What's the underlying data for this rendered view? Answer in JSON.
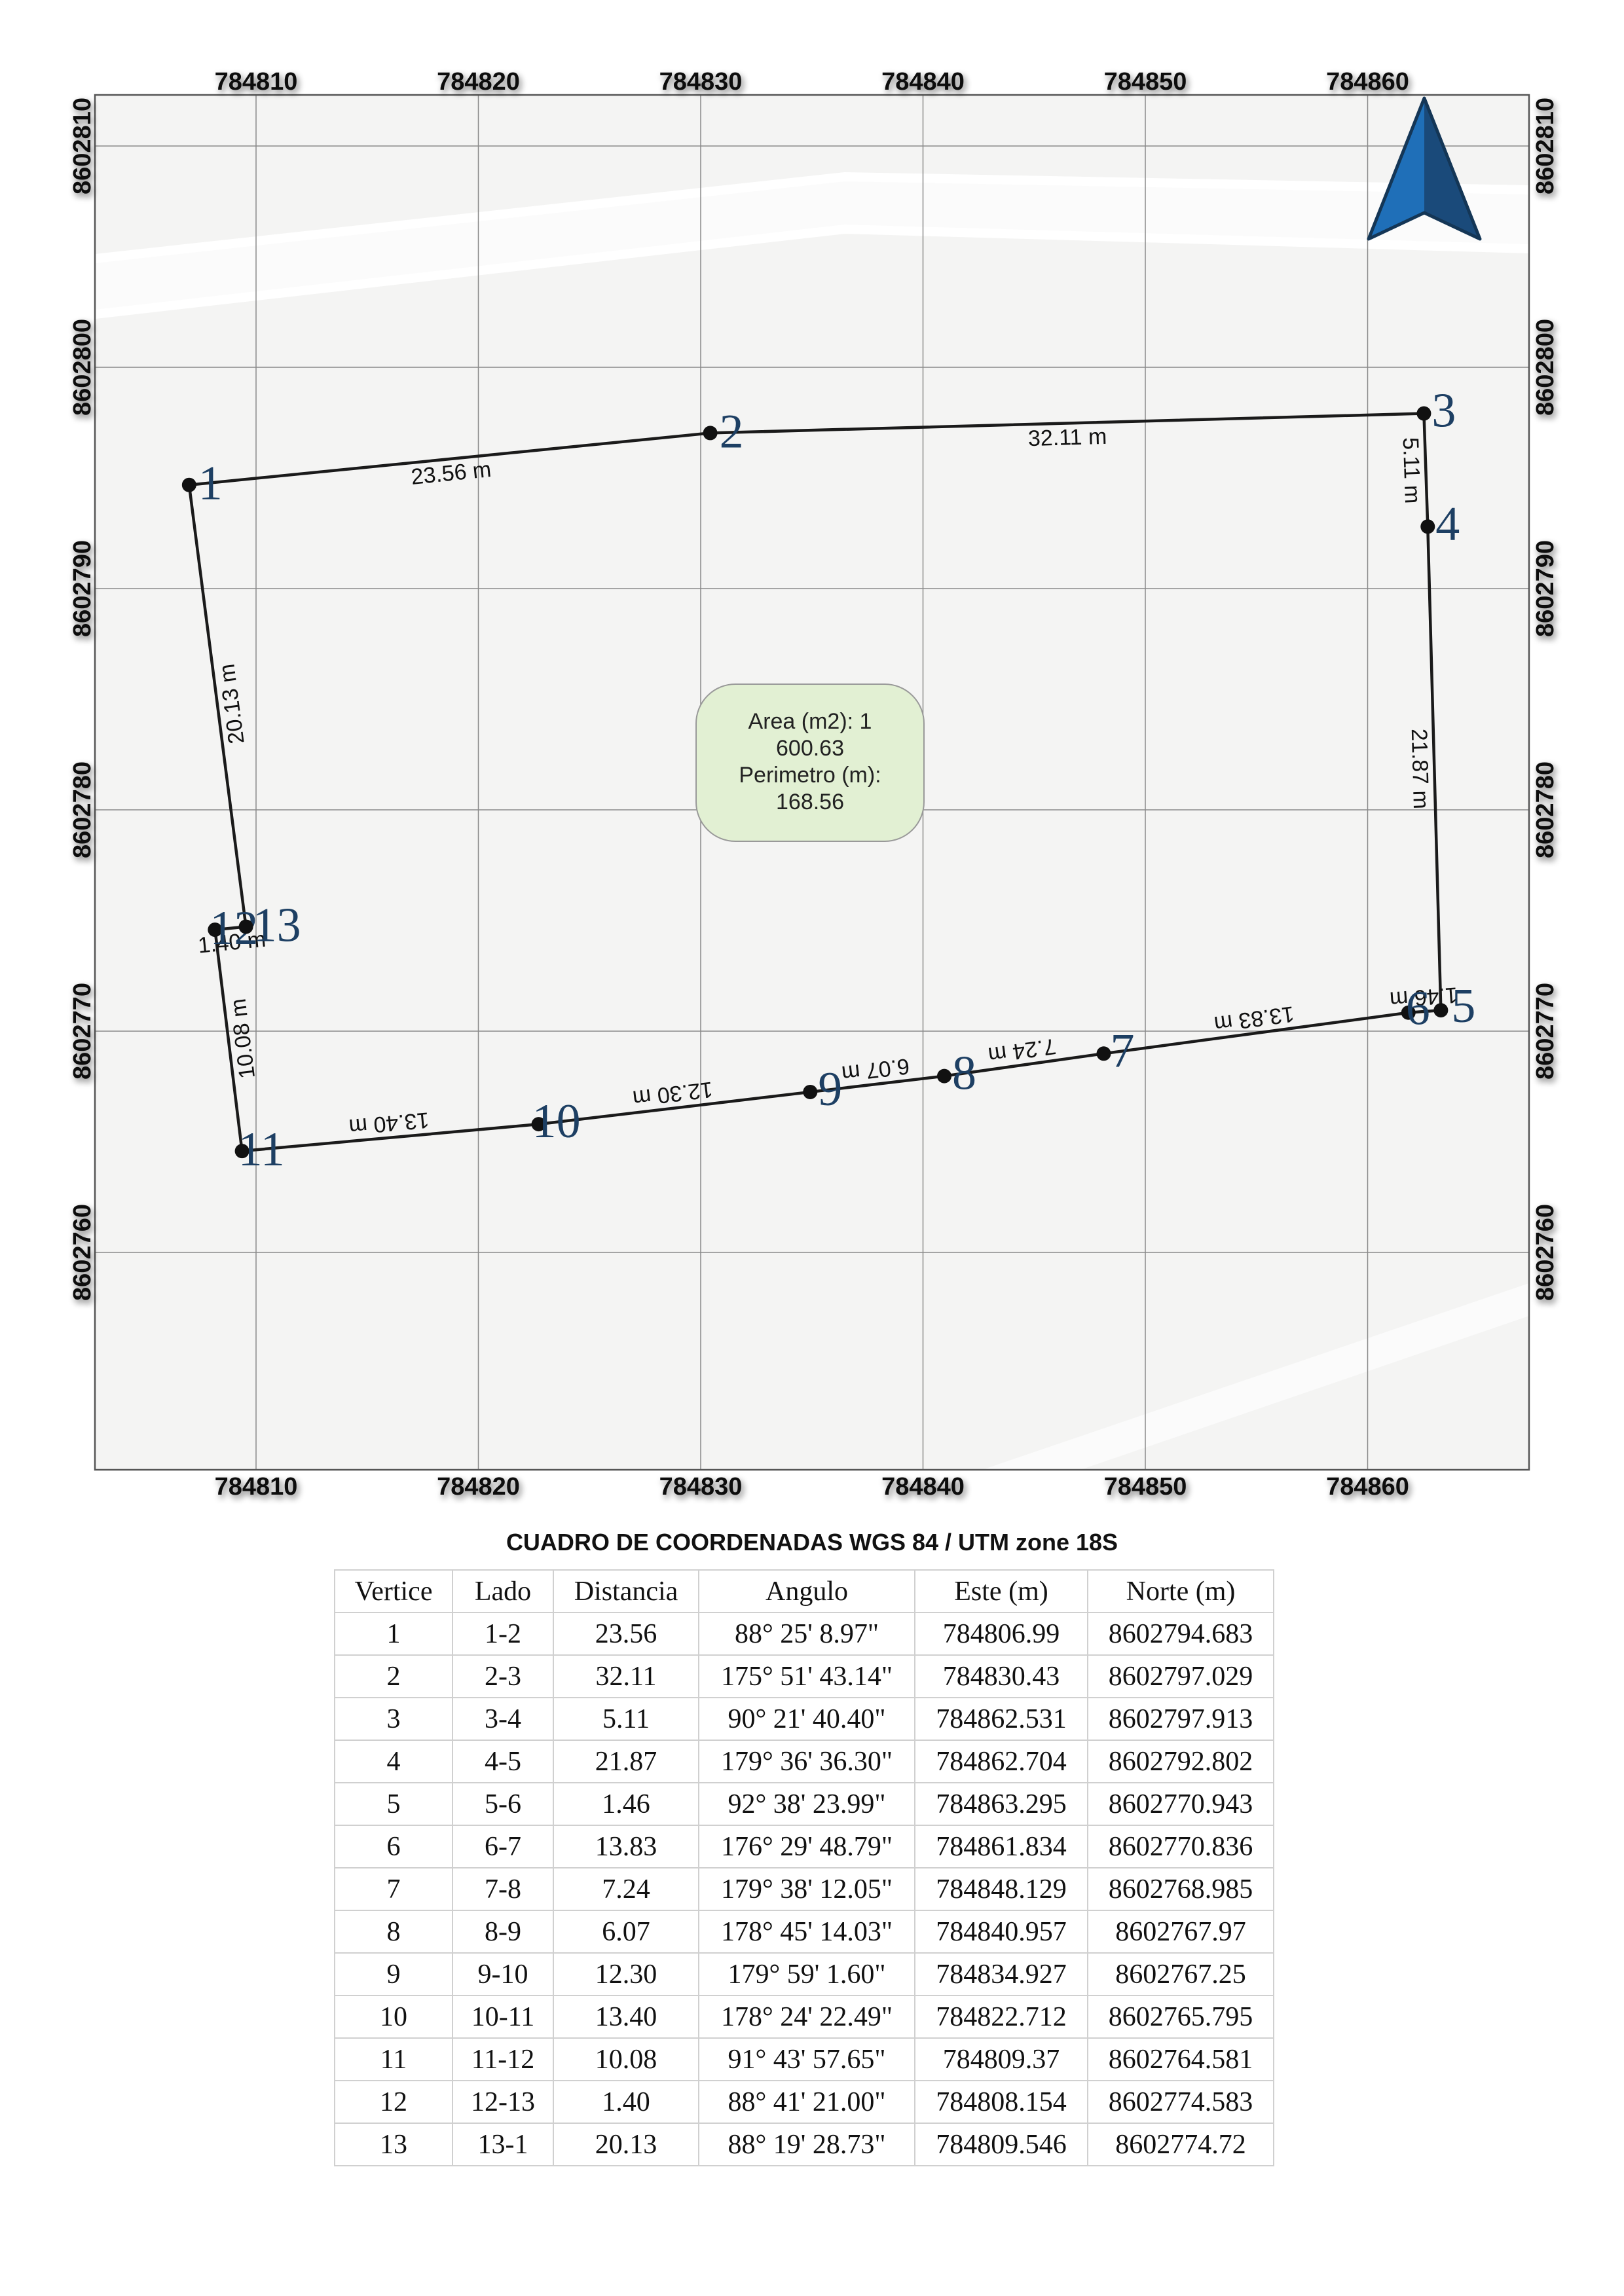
{
  "map": {
    "x_ticks": [
      "784810",
      "784820",
      "784830",
      "784840",
      "784850",
      "784860"
    ],
    "y_ticks": [
      "8602810",
      "8602800",
      "8602790",
      "8602780",
      "8602770",
      "8602760"
    ],
    "north_arrow_icon": "north-arrow-icon",
    "vertices": [
      {
        "label": "1",
        "este": 784806.99,
        "norte": 8602794.683
      },
      {
        "label": "2",
        "este": 784830.43,
        "norte": 8602797.029
      },
      {
        "label": "3",
        "este": 784862.531,
        "norte": 8602797.913
      },
      {
        "label": "4",
        "este": 784862.704,
        "norte": 8602792.802
      },
      {
        "label": "5",
        "este": 784863.295,
        "norte": 8602770.943
      },
      {
        "label": "6",
        "este": 784861.834,
        "norte": 8602770.836
      },
      {
        "label": "7",
        "este": 784848.129,
        "norte": 8602768.985
      },
      {
        "label": "8",
        "este": 784840.957,
        "norte": 8602767.97
      },
      {
        "label": "9",
        "este": 784834.927,
        "norte": 8602767.25
      },
      {
        "label": "10",
        "este": 784822.712,
        "norte": 8602765.795
      },
      {
        "label": "11",
        "este": 784809.37,
        "norte": 8602764.581
      },
      {
        "label": "12",
        "este": 784808.154,
        "norte": 8602774.583
      },
      {
        "label": "13",
        "este": 784809.546,
        "norte": 8602774.72
      }
    ],
    "segment_labels": [
      "23.56 m",
      "32.11 m",
      "5.11 m",
      "21.87 m",
      "1.46 m",
      "13.83 m",
      "7.24 m",
      "6.07 m",
      "12.30 m",
      "13.40 m",
      "10.08 m",
      "1.40 m",
      "20.13 m"
    ],
    "info_box": {
      "lines": [
        "Area (m2): 1",
        "600.63",
        "Perimetro (m):",
        "168.56"
      ]
    },
    "colors": {
      "polygon_line": "#1a1a1a",
      "vertex_label": "#1d3f63",
      "info_box_fill": "#e2f0d3",
      "arrow_blue": "#1f6fb8",
      "arrow_dark": "#1a3f66"
    }
  },
  "table": {
    "title": "CUADRO DE COORDENADAS WGS 84 / UTM zone 18S",
    "headers": [
      "Vertice",
      "Lado",
      "Distancia",
      "Angulo",
      "Este (m)",
      "Norte (m)"
    ],
    "rows": [
      [
        "1",
        "1-2",
        "23.56",
        "88° 25' 8.97\"",
        "784806.99",
        "8602794.683"
      ],
      [
        "2",
        "2-3",
        "32.11",
        "175° 51' 43.14\"",
        "784830.43",
        "8602797.029"
      ],
      [
        "3",
        "3-4",
        "5.11",
        "90° 21' 40.40\"",
        "784862.531",
        "8602797.913"
      ],
      [
        "4",
        "4-5",
        "21.87",
        "179° 36' 36.30\"",
        "784862.704",
        "8602792.802"
      ],
      [
        "5",
        "5-6",
        "1.46",
        "92° 38' 23.99\"",
        "784863.295",
        "8602770.943"
      ],
      [
        "6",
        "6-7",
        "13.83",
        "176° 29' 48.79\"",
        "784861.834",
        "8602770.836"
      ],
      [
        "7",
        "7-8",
        "7.24",
        "179° 38' 12.05\"",
        "784848.129",
        "8602768.985"
      ],
      [
        "8",
        "8-9",
        "6.07",
        "178° 45' 14.03\"",
        "784840.957",
        "8602767.97"
      ],
      [
        "9",
        "9-10",
        "12.30",
        "179° 59' 1.60\"",
        "784834.927",
        "8602767.25"
      ],
      [
        "10",
        "10-11",
        "13.40",
        "178° 24' 22.49\"",
        "784822.712",
        "8602765.795"
      ],
      [
        "11",
        "11-12",
        "10.08",
        "91° 43' 57.65\"",
        "784809.37",
        "8602764.581"
      ],
      [
        "12",
        "12-13",
        "1.40",
        "88° 41' 21.00\"",
        "784808.154",
        "8602774.583"
      ],
      [
        "13",
        "13-1",
        "20.13",
        "88° 19' 28.73\"",
        "784809.546",
        "8602774.72"
      ]
    ]
  }
}
